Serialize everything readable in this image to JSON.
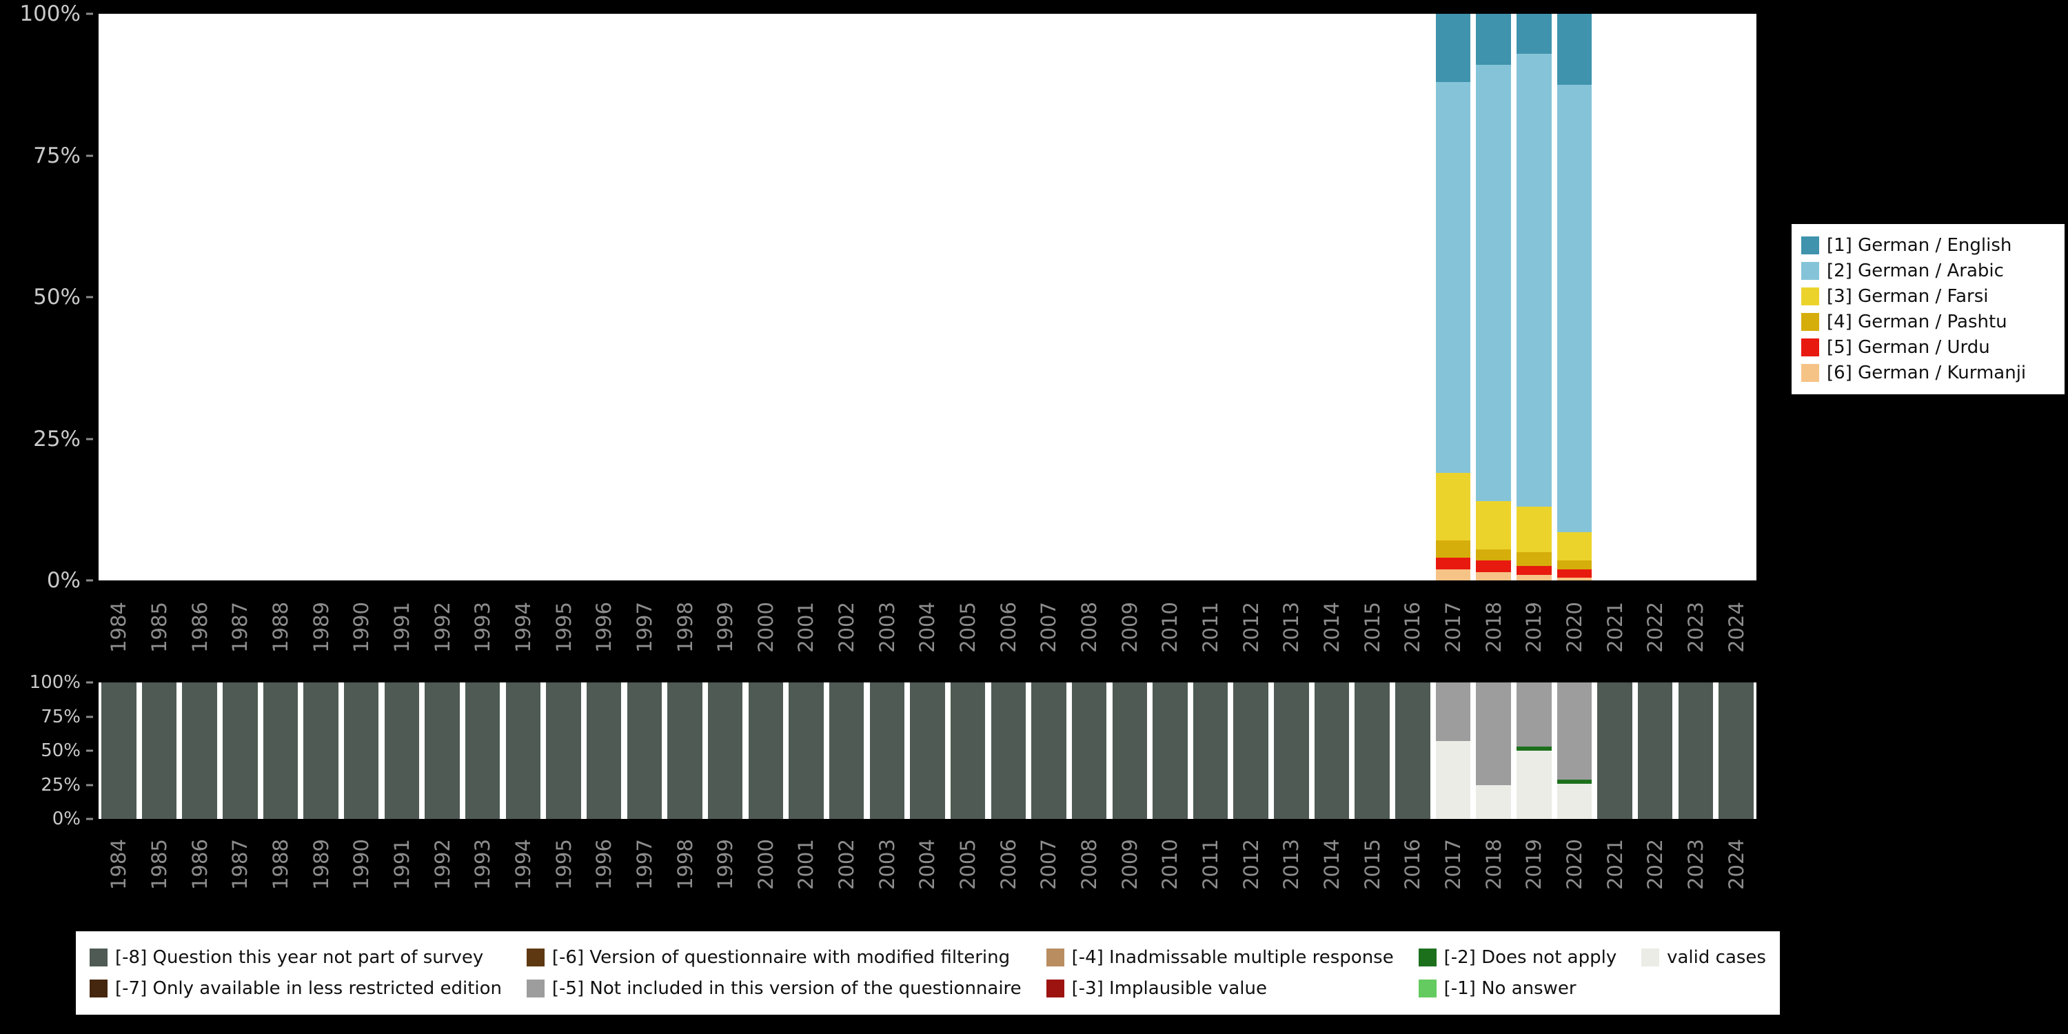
{
  "figure": {
    "background": "#000000",
    "plot_background": "#ffffff",
    "axis_label_color": "#c9c9c9",
    "year_label_color": "#8d8d8d"
  },
  "axes": {
    "y_tick_labels": [
      "100%",
      "75%",
      "50%",
      "25%",
      "0%"
    ]
  },
  "chart_data": [
    {
      "type": "bar",
      "stacked": true,
      "title": "",
      "xlabel": "",
      "ylabel": "",
      "ylim": [
        0,
        100
      ],
      "grid": false,
      "legend_position": "right",
      "y_tick_labels": [
        "0%",
        "25%",
        "50%",
        "75%",
        "100%"
      ],
      "categories": [
        "1984",
        "1985",
        "1986",
        "1987",
        "1988",
        "1989",
        "1990",
        "1991",
        "1992",
        "1993",
        "1994",
        "1995",
        "1996",
        "1997",
        "1998",
        "1999",
        "2000",
        "2001",
        "2002",
        "2003",
        "2004",
        "2005",
        "2006",
        "2007",
        "2008",
        "2009",
        "2010",
        "2011",
        "2012",
        "2013",
        "2014",
        "2015",
        "2016",
        "2017",
        "2018",
        "2019",
        "2020",
        "2021",
        "2022",
        "2023",
        "2024"
      ],
      "series": [
        {
          "name": "[1] German / English",
          "color": "#3f93ac",
          "values": {
            "2017": 12,
            "2018": 9,
            "2019": 7,
            "2020": 12.5
          }
        },
        {
          "name": "[2] German / Arabic",
          "color": "#85c4d8",
          "values": {
            "2017": 69,
            "2018": 77,
            "2019": 80,
            "2020": 79
          }
        },
        {
          "name": "[3] German / Farsi",
          "color": "#ecd32c",
          "values": {
            "2017": 12,
            "2018": 8.5,
            "2019": 8,
            "2020": 5
          }
        },
        {
          "name": "[4] German / Pashtu",
          "color": "#d6ae0b",
          "values": {
            "2017": 3,
            "2018": 2,
            "2019": 2.5,
            "2020": 1.5
          }
        },
        {
          "name": "[5] German / Urdu",
          "color": "#e8190f",
          "values": {
            "2017": 2,
            "2018": 2,
            "2019": 1.5,
            "2020": 1.5
          }
        },
        {
          "name": "[6] German / Kurmanji",
          "color": "#f6c387",
          "values": {
            "2017": 2,
            "2018": 1.5,
            "2019": 1,
            "2020": 0.5
          }
        }
      ]
    },
    {
      "type": "bar",
      "stacked": true,
      "title": "",
      "xlabel": "",
      "ylabel": "",
      "ylim": [
        0,
        100
      ],
      "grid": false,
      "legend_position": "bottom",
      "legend_columns": 5,
      "legend_rows": 2,
      "y_tick_labels": [
        "0%",
        "25%",
        "50%",
        "75%",
        "100%"
      ],
      "categories": [
        "1984",
        "1985",
        "1986",
        "1987",
        "1988",
        "1989",
        "1990",
        "1991",
        "1992",
        "1993",
        "1994",
        "1995",
        "1996",
        "1997",
        "1998",
        "1999",
        "2000",
        "2001",
        "2002",
        "2003",
        "2004",
        "2005",
        "2006",
        "2007",
        "2008",
        "2009",
        "2010",
        "2011",
        "2012",
        "2013",
        "2014",
        "2015",
        "2016",
        "2017",
        "2018",
        "2019",
        "2020",
        "2021",
        "2022",
        "2023",
        "2024"
      ],
      "series": [
        {
          "name": "[-8] Question this year not part of survey",
          "color": "#4e5a53",
          "year_ranges_full": [
            [
              1984,
              2016
            ],
            [
              2021,
              2024
            ]
          ],
          "values": {}
        },
        {
          "name": "[-7] Only available in less restricted edition",
          "color": "#45260f",
          "values": {}
        },
        {
          "name": "[-6] Version of questionnaire with modified filtering",
          "color": "#5e3811",
          "values": {}
        },
        {
          "name": "[-5] Not included in this version of the questionnaire",
          "color": "#9d9d9d",
          "values": {
            "2017": 43,
            "2018": 75,
            "2019": 47,
            "2020": 71
          }
        },
        {
          "name": "[-4] Inadmissable multiple response",
          "color": "#b98d60",
          "values": {}
        },
        {
          "name": "[-3] Implausible value",
          "color": "#9c1310",
          "values": {}
        },
        {
          "name": "[-2] Does not apply",
          "color": "#1c701c",
          "values": {
            "2019": 3,
            "2020": 3
          }
        },
        {
          "name": "[-1] No answer",
          "color": "#63cb5f",
          "values": {}
        },
        {
          "name": "valid cases",
          "color": "#ebece6",
          "values": {
            "2017": 57,
            "2018": 25,
            "2019": 50,
            "2020": 26
          }
        }
      ]
    }
  ]
}
